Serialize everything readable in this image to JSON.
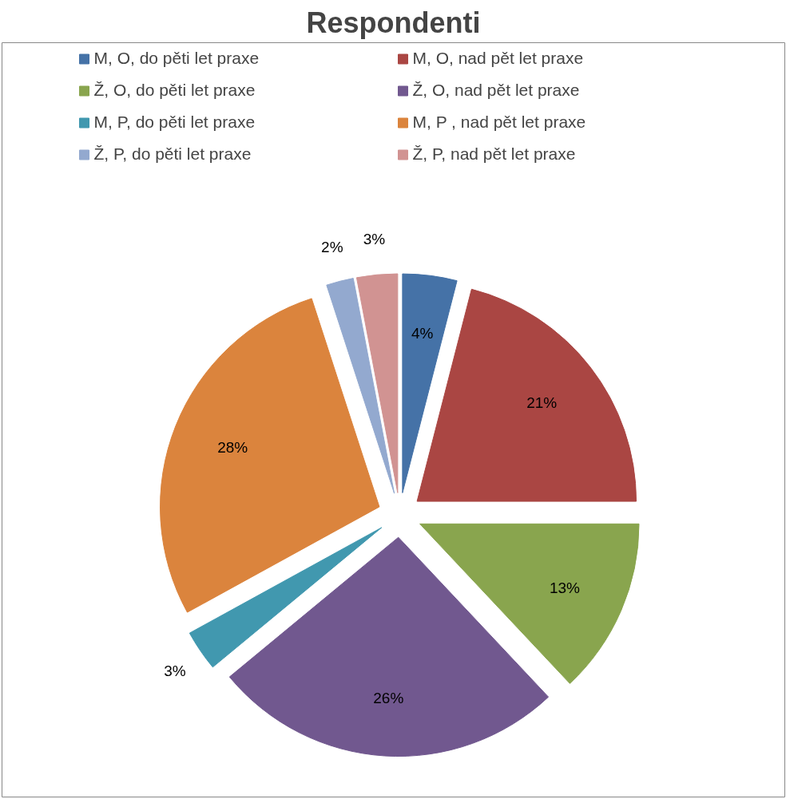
{
  "chart_data": {
    "type": "pie",
    "title": "Respondenti",
    "categories": [
      "M, O, do pěti let praxe",
      "M, O, nad pět let praxe",
      "Ž, O, do pěti let praxe",
      "Ž, O, nad pět let praxe",
      "M, P, do pěti let praxe",
      "M, P , nad pět let praxe",
      "Ž, P, do pěti let praxe",
      "Ž, P, nad pět let praxe"
    ],
    "values": [
      4,
      21,
      13,
      26,
      3,
      28,
      2,
      3
    ],
    "colors": [
      "#4572a7",
      "#aa4643",
      "#89a54e",
      "#71588f",
      "#4198af",
      "#db843d",
      "#93a9cf",
      "#d19392"
    ],
    "value_labels": [
      "4%",
      "21%",
      "13%",
      "26%",
      "3%",
      "28%",
      "2%",
      "3%"
    ],
    "legend": "top"
  }
}
